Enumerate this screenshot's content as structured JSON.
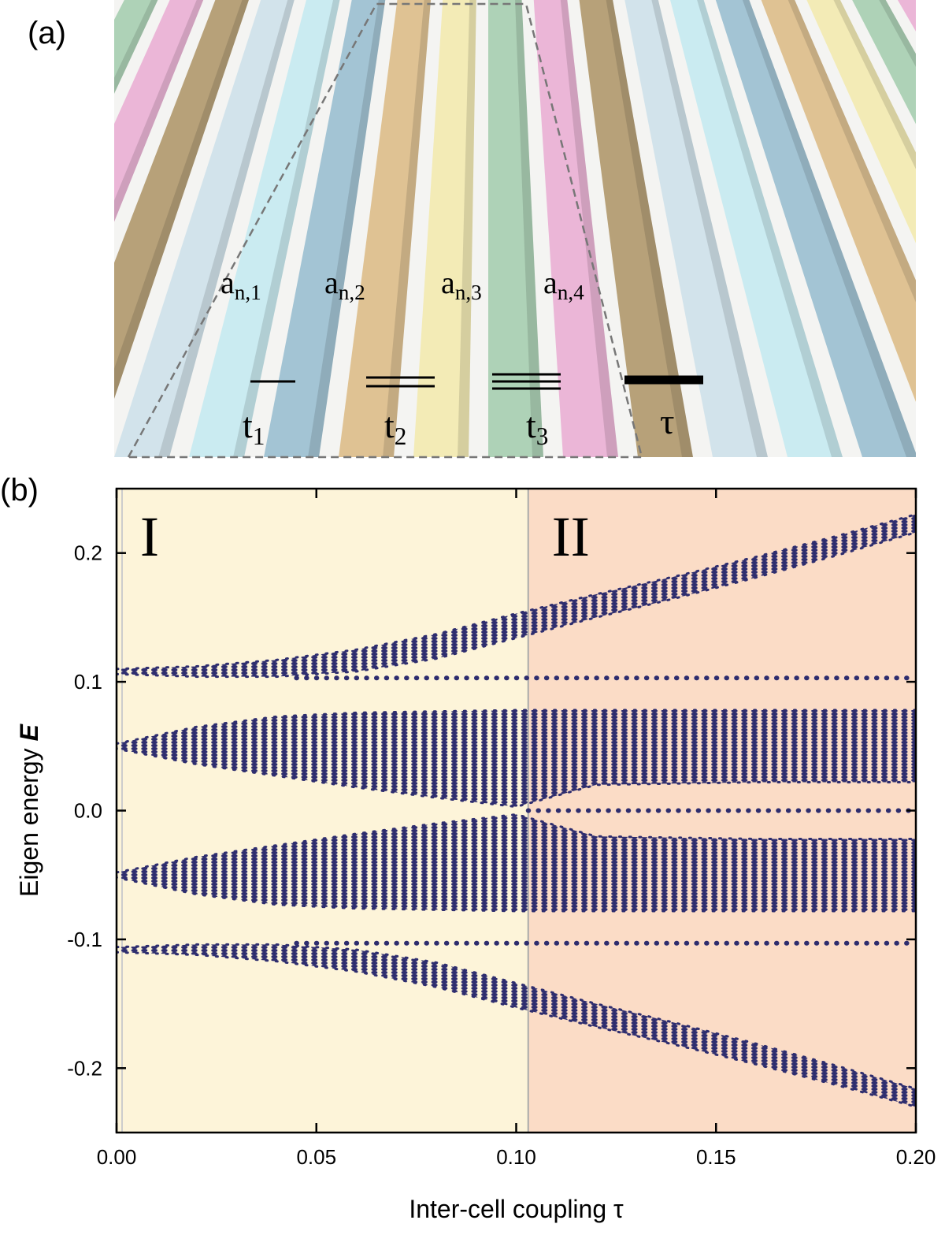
{
  "panel_a": {
    "tag": "(a)",
    "sites": [
      {
        "base": "a",
        "sub": "n,1"
      },
      {
        "base": "a",
        "sub": "n,2"
      },
      {
        "base": "a",
        "sub": "n,3"
      },
      {
        "base": "a",
        "sub": "n,4"
      }
    ],
    "couplings": [
      {
        "base": "t",
        "sub": "1"
      },
      {
        "base": "t",
        "sub": "2"
      },
      {
        "base": "t",
        "sub": "3"
      },
      {
        "base": "τ",
        "sub": ""
      }
    ]
  },
  "chart_data": {
    "type": "band",
    "tag": "(b)",
    "xlabel": "Inter-cell coupling τ",
    "ylabel": {
      "text": "Eigen energy",
      "symbol": "E"
    },
    "xlim": [
      0,
      0.2
    ],
    "ylim": [
      -0.25,
      0.25
    ],
    "xticks": [
      {
        "value": 0,
        "label": "0.00"
      },
      0.05,
      {
        "value": 0.1,
        "label": "0.10"
      },
      0.15,
      {
        "value": 0.2,
        "label": "0.20"
      }
    ],
    "yticks": [
      -0.2,
      -0.1,
      {
        "value": 0,
        "label": "0.0"
      },
      0.1,
      0.2
    ],
    "color": "#2e2d6e",
    "regions": [
      {
        "label": "I",
        "from": 0,
        "to": 0.103,
        "color": "#fdf4d9"
      },
      {
        "label": "II",
        "from": 0.103,
        "to": 0.2,
        "color": "#fbdcc6"
      }
    ],
    "x": [
      0,
      0.02,
      0.04,
      0.06,
      0.08,
      0.1,
      0.12,
      0.14,
      0.16,
      0.18,
      0.2
    ],
    "bands": [
      {
        "upper": [
          0.11,
          0.112,
          0.117,
          0.125,
          0.137,
          0.153,
          0.168,
          0.182,
          0.197,
          0.213,
          0.23
        ],
        "lower": [
          0.106,
          0.104,
          0.104,
          0.108,
          0.118,
          0.134,
          0.15,
          0.165,
          0.181,
          0.198,
          0.216
        ]
      },
      {
        "upper": [
          0.052,
          0.065,
          0.073,
          0.076,
          0.077,
          0.078,
          0.078,
          0.078,
          0.078,
          0.078,
          0.078
        ],
        "lower": [
          0.048,
          0.036,
          0.027,
          0.018,
          0.01,
          0.003,
          0.02,
          0.021,
          0.022,
          0.022,
          0.022
        ]
      },
      {
        "upper": [
          -0.048,
          -0.036,
          -0.027,
          -0.018,
          -0.01,
          -0.003,
          -0.02,
          -0.021,
          -0.022,
          -0.022,
          -0.022
        ],
        "lower": [
          -0.052,
          -0.065,
          -0.073,
          -0.076,
          -0.077,
          -0.078,
          -0.078,
          -0.078,
          -0.078,
          -0.078,
          -0.078
        ]
      },
      {
        "upper": [
          -0.106,
          -0.104,
          -0.104,
          -0.108,
          -0.118,
          -0.134,
          -0.15,
          -0.165,
          -0.181,
          -0.198,
          -0.216
        ],
        "lower": [
          -0.11,
          -0.112,
          -0.117,
          -0.125,
          -0.137,
          -0.153,
          -0.168,
          -0.182,
          -0.197,
          -0.213,
          -0.23
        ]
      }
    ],
    "levels": [
      {
        "value": 0.103,
        "from": 0.045
      },
      {
        "value": -0.103,
        "from": 0.045
      },
      {
        "value": 0,
        "from": 0.103
      }
    ]
  }
}
